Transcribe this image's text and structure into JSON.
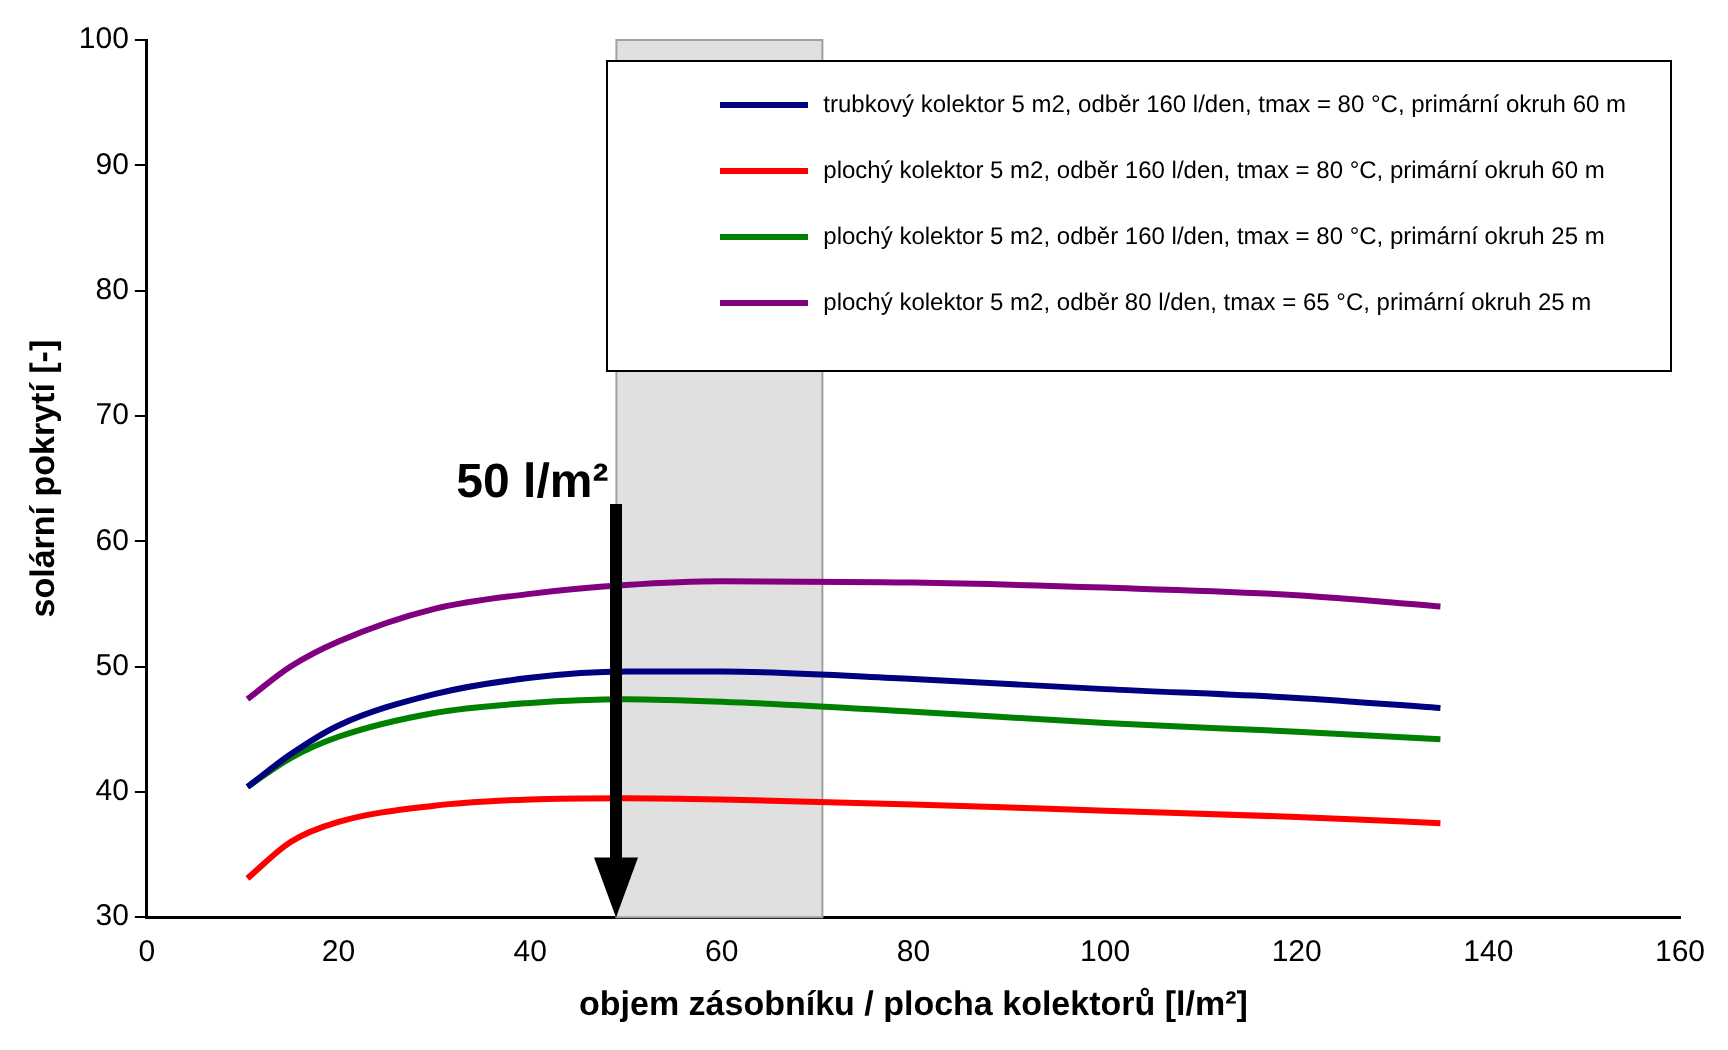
{
  "chart_data": {
    "type": "line",
    "xlabel": "objem zásobníku / plocha kolektorů [l/m²]",
    "ylabel": "solární pokrytí [-]",
    "x": [
      10.5,
      15,
      20,
      30,
      40,
      50,
      60,
      80,
      100,
      120,
      135
    ],
    "series": [
      {
        "name": "trubkový kolektor 5 m2, odběr 160 l/den, tmax = 80 °C, primární okruh 60 m",
        "color": "#000080",
        "values": [
          40.4,
          43,
          45.3,
          47.8,
          49.1,
          49.6,
          49.6,
          49,
          48.2,
          47.5,
          46.7
        ]
      },
      {
        "name": "plochý kolektor 5 m2, odběr 160 l/den, tmax = 80 °C, primární okruh 60 m",
        "color": "#ff0000",
        "values": [
          33.1,
          36,
          37.6,
          38.9,
          39.4,
          39.5,
          39.4,
          39,
          38.5,
          38,
          37.5
        ]
      },
      {
        "name": "plochý kolektor 5 m2, odběr 160 l/den, tmax = 80 °C, primární okruh 25 m",
        "color": "#008000",
        "values": [
          40.4,
          42.7,
          44.4,
          46.3,
          47.1,
          47.4,
          47.2,
          46.4,
          45.5,
          44.8,
          44.2
        ]
      },
      {
        "name": "plochý kolektor 5 m2, odběr 80 l/den, tmax = 65 °C, primární okruh 25 m",
        "color": "#800080",
        "values": [
          47.4,
          50,
          52,
          54.6,
          55.8,
          56.5,
          56.8,
          56.7,
          56.3,
          55.7,
          54.8
        ]
      }
    ],
    "xlim": [
      0,
      160
    ],
    "xticks": [
      0,
      20,
      40,
      60,
      80,
      100,
      120,
      140,
      160
    ],
    "ylim": [
      30,
      100
    ],
    "yticks": [
      30,
      40,
      50,
      60,
      70,
      80,
      90,
      100
    ],
    "bands": [
      {
        "axis": "x",
        "from": 49,
        "to": 70.5,
        "color": "#e0e0e0"
      }
    ],
    "annotations": [
      {
        "text": "50 l/m²",
        "x": 49,
        "y": 63
      }
    ],
    "grid": false,
    "legend": "top right",
    "marker": "none",
    "line_style": "solid"
  }
}
